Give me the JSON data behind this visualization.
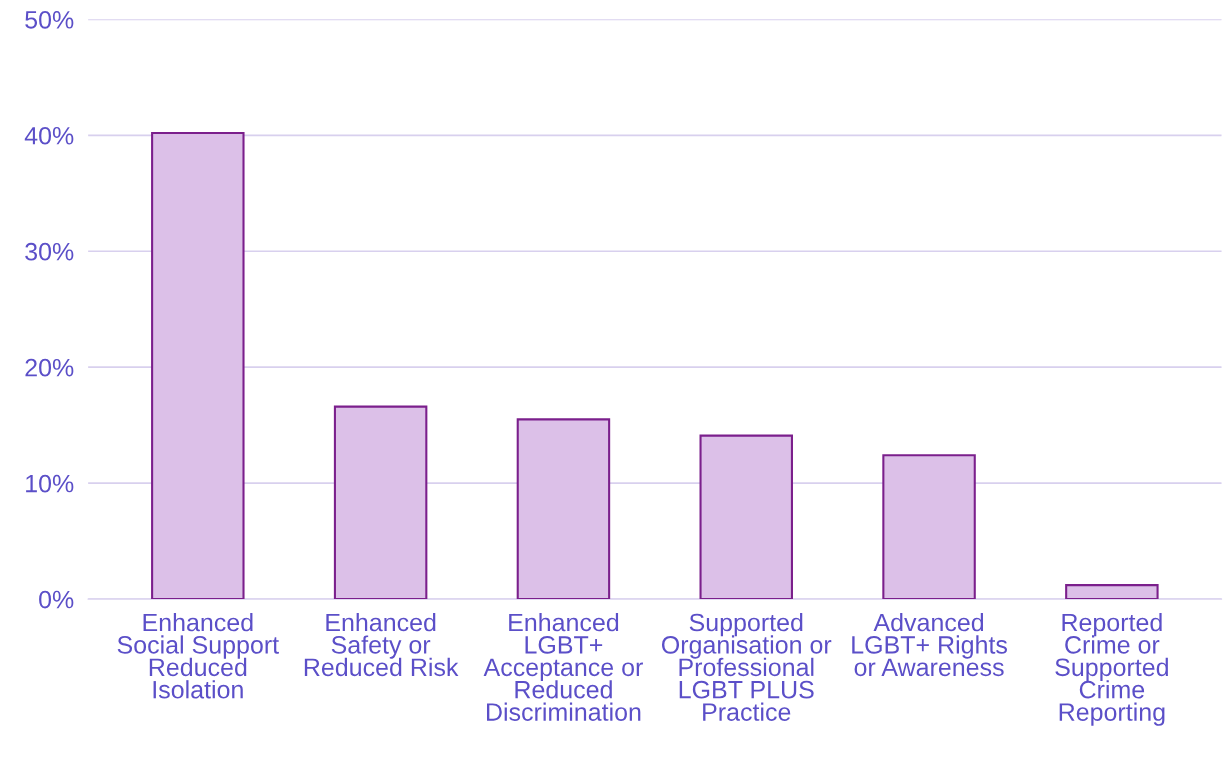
{
  "chart_data": {
    "type": "bar",
    "categories": [
      "Enhanced\nSocial Support\nReduced\nIsolation",
      "Enhanced\nSafety or\nReduced Risk",
      "Enhanced\nLGBT+\nAcceptance or\nReduced\nDiscrimination",
      "Supported\nOrganisation or\nProfessional\nLGBT PLUS\nPractice",
      "Advanced\nLGBT+ Rights\nor Awareness",
      "Reported\nCrime or\nSupported\nCrime\nReporting"
    ],
    "values": [
      40.2,
      16.6,
      15.5,
      14.1,
      12.4,
      1.2
    ],
    "color": "#dcc0e8",
    "ylim": [
      0,
      50
    ],
    "yticks": [
      {
        "value": 0,
        "label": "0%"
      },
      {
        "value": 10,
        "label": "10%"
      },
      {
        "value": 20,
        "label": "20%"
      },
      {
        "value": 30,
        "label": "30%"
      },
      {
        "value": 40,
        "label": "40%"
      },
      {
        "value": 50,
        "label": "50%"
      }
    ],
    "grid": "y"
  }
}
